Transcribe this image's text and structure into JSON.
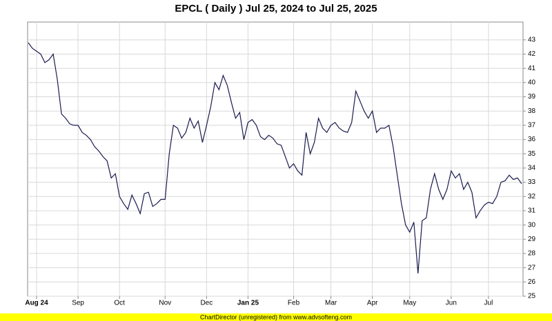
{
  "chart_data": {
    "type": "line",
    "title": "EPCL ( Daily ) Jul 25, 2024 to Jul 25, 2025",
    "footer": "ChartDirector (unregistered) from www.advsofteng.com",
    "categories": [
      null,
      null,
      "Aug 24",
      null,
      null,
      null,
      null,
      null,
      null,
      null,
      null,
      null,
      "Sep",
      null,
      null,
      null,
      null,
      null,
      null,
      null,
      null,
      null,
      "Oct",
      null,
      null,
      null,
      null,
      null,
      null,
      null,
      null,
      null,
      null,
      "Nov",
      null,
      null,
      null,
      null,
      null,
      null,
      null,
      null,
      null,
      "Dec",
      null,
      null,
      null,
      null,
      null,
      null,
      null,
      null,
      null,
      "Jan 25",
      null,
      null,
      null,
      null,
      null,
      null,
      null,
      null,
      null,
      null,
      "Feb",
      null,
      null,
      null,
      null,
      null,
      null,
      null,
      null,
      "Mar",
      null,
      null,
      null,
      null,
      null,
      null,
      null,
      null,
      null,
      "Apr",
      null,
      null,
      null,
      null,
      null,
      null,
      null,
      null,
      "May",
      null,
      null,
      null,
      null,
      null,
      null,
      null,
      null,
      null,
      "Jun",
      null,
      null,
      null,
      null,
      null,
      null,
      null,
      null,
      "Jul",
      null,
      null,
      null,
      null,
      null,
      null,
      null,
      null
    ],
    "values": [
      42.8,
      42.4,
      42.2,
      42.0,
      41.4,
      41.6,
      42.0,
      40.2,
      37.8,
      37.5,
      37.1,
      37.0,
      37.0,
      36.5,
      36.3,
      36.0,
      35.5,
      35.2,
      34.8,
      34.5,
      33.3,
      33.6,
      32.0,
      31.5,
      31.1,
      32.1,
      31.5,
      30.8,
      32.2,
      32.3,
      31.3,
      31.5,
      31.8,
      31.8,
      35.0,
      37.0,
      36.8,
      36.1,
      36.5,
      37.5,
      36.8,
      37.3,
      35.8,
      37.0,
      38.3,
      40.0,
      39.5,
      40.5,
      39.8,
      38.6,
      37.5,
      37.9,
      36.0,
      37.2,
      37.4,
      37.0,
      36.2,
      36.0,
      36.3,
      36.1,
      35.7,
      35.6,
      34.8,
      34.0,
      34.3,
      33.8,
      33.5,
      36.5,
      35.0,
      35.8,
      37.5,
      36.8,
      36.5,
      37.0,
      37.2,
      36.8,
      36.6,
      36.5,
      37.2,
      39.4,
      38.7,
      38.0,
      37.5,
      38.0,
      36.5,
      36.8,
      36.8,
      37.0,
      35.5,
      33.5,
      31.5,
      30.0,
      29.5,
      30.2,
      26.6,
      30.3,
      30.5,
      32.5,
      33.6,
      32.5,
      31.8,
      32.5,
      33.8,
      33.3,
      33.6,
      32.5,
      33.0,
      32.3,
      30.5,
      31.0,
      31.4,
      31.6,
      31.5,
      32.0,
      33.0,
      33.1,
      33.5,
      33.2,
      33.3,
      32.9
    ],
    "color": "#1a1a4e",
    "ylim": [
      25,
      44.25
    ],
    "yticks": [
      25,
      26,
      27,
      28,
      29,
      30,
      31,
      32,
      33,
      34,
      35,
      36,
      37,
      38,
      39,
      40,
      41,
      42,
      43
    ],
    "grid": true
  }
}
